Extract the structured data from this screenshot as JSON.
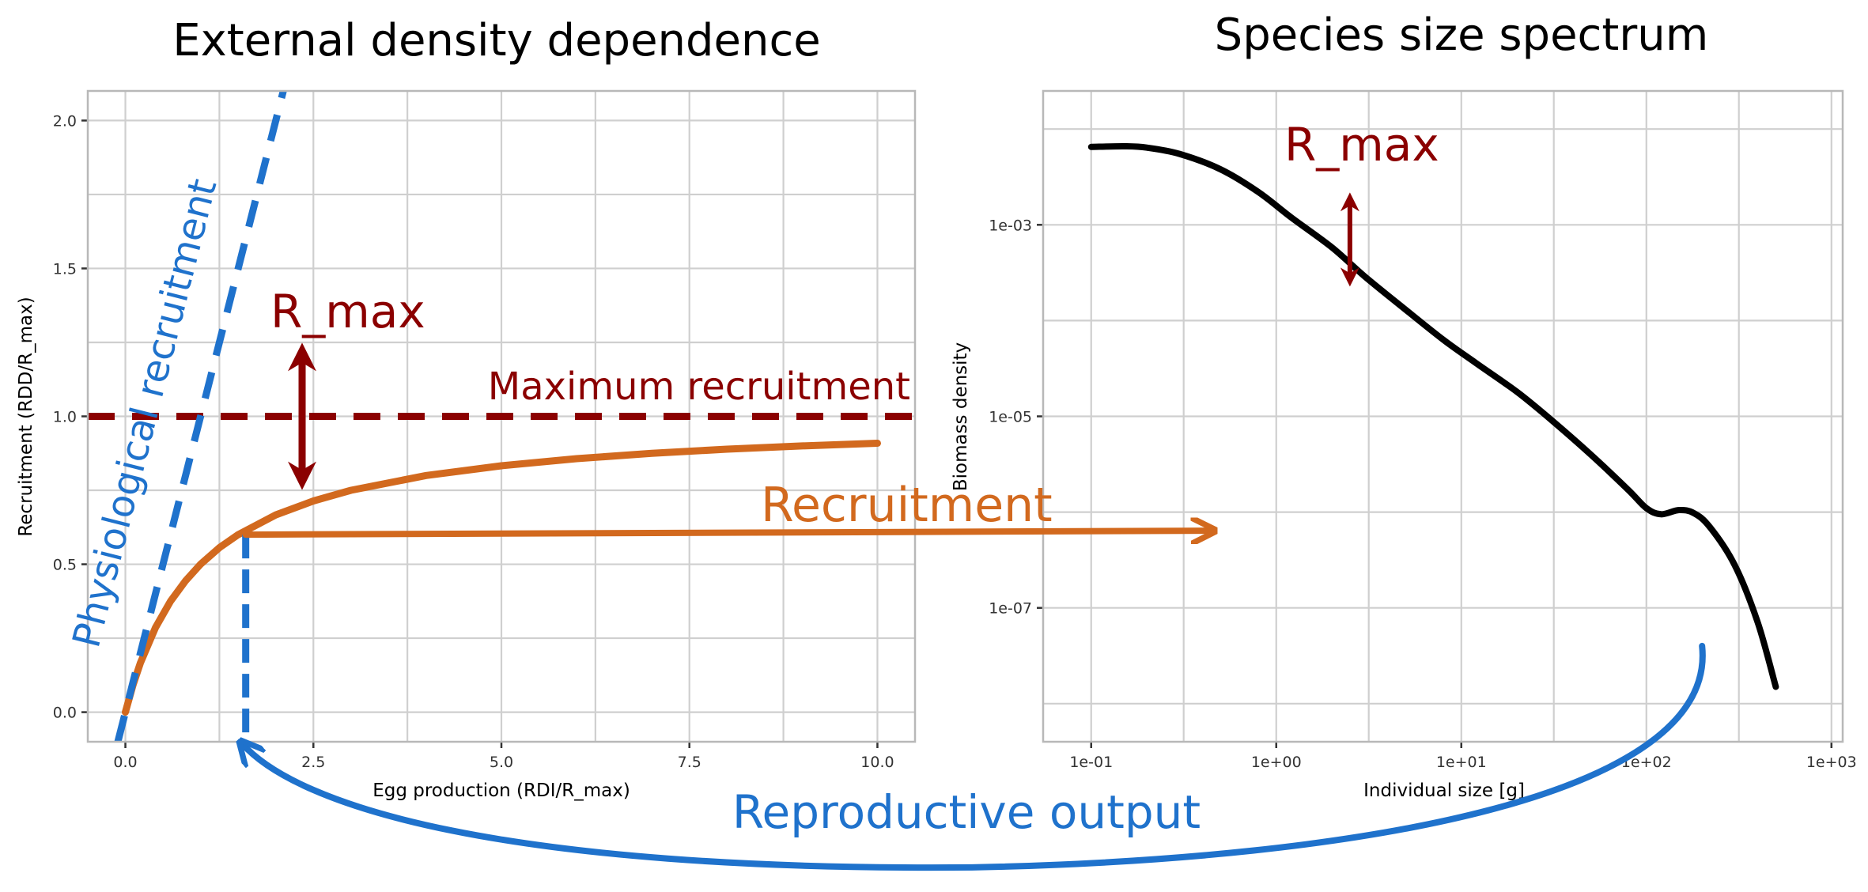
{
  "colors": {
    "recruitment": "#d2691e",
    "max_recruitment": "#8b0000",
    "physiological": "#1f72cc",
    "spectrum": "#000000",
    "grid": "#cfcfcf",
    "border": "#b8b8b8"
  },
  "chart_data": [
    {
      "type": "line",
      "title": "External density dependence",
      "xlabel": "Egg production (RDI/R_max)",
      "ylabel": "Recruitment (RDD/R_max)",
      "xlim": [
        -0.5,
        10.5
      ],
      "ylim": [
        -0.1,
        2.1
      ],
      "x_ticks": [
        0,
        2.5,
        5,
        7.5,
        10
      ],
      "x_tick_labels": [
        "0.0",
        "2.5",
        "5.0",
        "7.5",
        "10.0"
      ],
      "y_ticks": [
        0,
        0.5,
        1,
        1.5,
        2
      ],
      "y_tick_labels": [
        "0.0",
        "0.5",
        "1.0",
        "1.5",
        "2.0"
      ],
      "grid": true,
      "series": [
        {
          "name": "Recruitment",
          "style": "solid",
          "x": [
            0,
            0.1,
            0.2,
            0.4,
            0.6,
            0.8,
            1,
            1.25,
            1.5,
            2,
            2.5,
            3,
            4,
            5,
            6,
            7,
            8,
            9,
            10
          ],
          "y": [
            0,
            0.091,
            0.167,
            0.286,
            0.375,
            0.444,
            0.5,
            0.556,
            0.6,
            0.667,
            0.714,
            0.75,
            0.8,
            0.833,
            0.857,
            0.875,
            0.889,
            0.9,
            0.909
          ]
        },
        {
          "name": "Physiological recruitment",
          "style": "dashed",
          "x": [
            -0.1,
            2.1
          ],
          "y": [
            -0.1,
            2.1
          ]
        },
        {
          "name": "Maximum recruitment",
          "style": "dashed",
          "x": [
            -0.5,
            10.5
          ],
          "y": [
            1,
            1
          ]
        }
      ],
      "annotations": {
        "rmax_label": "R_max",
        "max_label": "Maximum recruitment",
        "phys_label": "Physiological recruitment",
        "rmax_arrow": {
          "x": 2.35,
          "y_from": 0.78,
          "y_to": 1.22
        },
        "egg_drop": {
          "x": 1.6,
          "y_from": 0.6,
          "y_to": -0.1
        }
      }
    },
    {
      "type": "line",
      "title": "Species size spectrum",
      "xlabel": "Individual size [g]",
      "ylabel": "Biomass density",
      "x_scale": "log",
      "y_scale": "log",
      "xlim": [
        0.055,
        1150
      ],
      "ylim": [
        4e-09,
        0.025
      ],
      "x_ticks": [
        0.1,
        1,
        10,
        100,
        1000
      ],
      "x_tick_labels": [
        "1e-01",
        "1e+00",
        "1e+01",
        "1e+02",
        "1e+03"
      ],
      "y_ticks": [
        0.001,
        1e-05,
        1e-07
      ],
      "y_tick_labels": [
        "1e-03",
        "1e-05",
        "1e-07"
      ],
      "grid": true,
      "series": [
        {
          "name": "spectrum",
          "style": "solid",
          "x": [
            0.1,
            0.15,
            0.2,
            0.3,
            0.5,
            0.8,
            1.2,
            2,
            3,
            5,
            8,
            12,
            20,
            30,
            50,
            80,
            100,
            120,
            150,
            180,
            220,
            300,
            400,
            500
          ],
          "y": [
            0.0065,
            0.0066,
            0.0064,
            0.0055,
            0.0038,
            0.0022,
            0.0012,
            0.00058,
            0.00029,
            0.00013,
            6.3e-05,
            3.6e-05,
            1.8e-05,
            9.5e-06,
            4e-06,
            1.7e-06,
            1.1e-06,
            9.5e-07,
            1.05e-06,
            9.8e-07,
            7e-07,
            2.8e-07,
            7e-08,
            1.5e-08
          ]
        }
      ],
      "annotations": {
        "rmax_label": "R_max",
        "rmax_arrow": {
          "x": 2.5,
          "y_from": 0.00026,
          "y_to": 0.0019
        }
      }
    }
  ],
  "annotations": {
    "recruitment_label": "Recruitment",
    "reproductive_label": "Reproductive output"
  }
}
